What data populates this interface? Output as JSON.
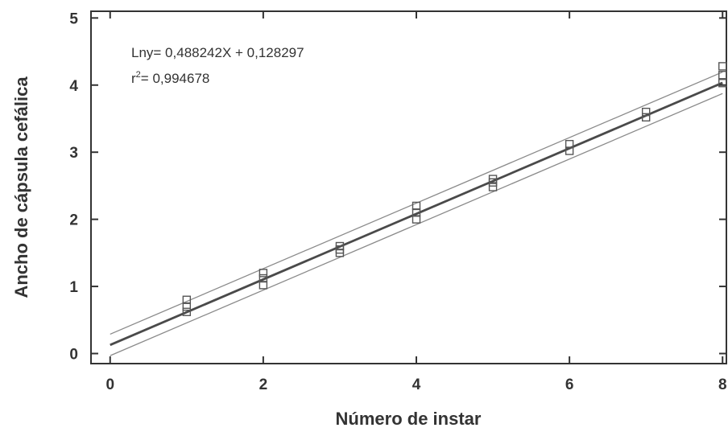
{
  "chart_data": {
    "type": "scatter",
    "title": "",
    "xlabel": "Número de instar",
    "ylabel": "Ancho de cápsula cefálica",
    "xlim": [
      -0.25,
      8.05
    ],
    "ylim": [
      -0.15,
      5.1
    ],
    "x_ticks": [
      "0",
      "2",
      "4",
      "6",
      "8"
    ],
    "y_ticks": [
      "0",
      "1",
      "2",
      "3",
      "4",
      "5"
    ],
    "grid": false,
    "annotations": {
      "equation": "Lny= 0,488242X + 0,128297",
      "r2_prefix": "r",
      "r2_sup": "2",
      "r2_value": "= 0,994678"
    },
    "points": [
      {
        "x": 1,
        "y": 0.8
      },
      {
        "x": 1,
        "y": 0.7
      },
      {
        "x": 1,
        "y": 0.62
      },
      {
        "x": 2,
        "y": 1.2
      },
      {
        "x": 2,
        "y": 1.12
      },
      {
        "x": 2,
        "y": 1.02
      },
      {
        "x": 3,
        "y": 1.6
      },
      {
        "x": 3,
        "y": 1.55
      },
      {
        "x": 3,
        "y": 1.5
      },
      {
        "x": 4,
        "y": 2.2
      },
      {
        "x": 4,
        "y": 2.1
      },
      {
        "x": 4,
        "y": 2.0
      },
      {
        "x": 5,
        "y": 2.6
      },
      {
        "x": 5,
        "y": 2.55
      },
      {
        "x": 5,
        "y": 2.48
      },
      {
        "x": 6,
        "y": 3.12
      },
      {
        "x": 6,
        "y": 3.02
      },
      {
        "x": 7,
        "y": 3.6
      },
      {
        "x": 7,
        "y": 3.52
      },
      {
        "x": 8,
        "y": 4.28
      },
      {
        "x": 8,
        "y": 4.15
      },
      {
        "x": 8,
        "y": 4.03
      }
    ],
    "fit_line": {
      "slope": 0.488242,
      "intercept": 0.128297,
      "x_range": [
        0,
        8
      ]
    },
    "confidence_band": {
      "lower_offset": 0.16,
      "upper_offset": 0.16
    },
    "colors": {
      "fit": "#4a4a4a",
      "band": "#8a8a8a",
      "points": "#555555",
      "axis": "#333333"
    }
  }
}
